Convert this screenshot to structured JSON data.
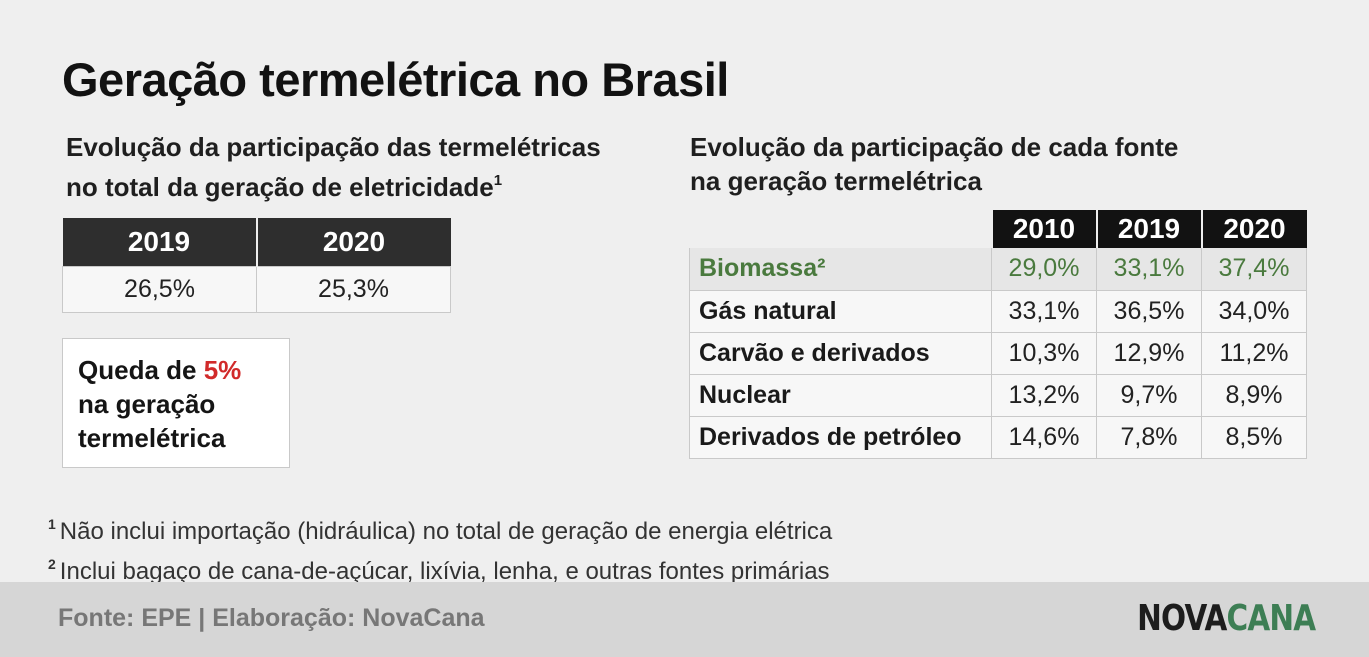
{
  "title": "Geração termelétrica no Brasil",
  "left_section": {
    "subtitle_line1": "Evolução da participação das termelétricas",
    "subtitle_line2": "no total da geração de eletricidade",
    "subtitle_mark": "1",
    "columns": [
      "2019",
      "2020"
    ],
    "values": [
      "26,5%",
      "25,3%"
    ],
    "callout": {
      "prefix": "Queda de ",
      "highlight": "5%",
      "line2": "na geração",
      "line3": "termelétrica",
      "highlight_color": "#d12a2a"
    }
  },
  "right_section": {
    "subtitle_line1": "Evolução da participação de cada fonte",
    "subtitle_line2": "na geração termelétrica",
    "columns": [
      "2010",
      "2019",
      "2020"
    ],
    "rows": [
      {
        "label": "Biomassa",
        "mark": "²",
        "values": [
          "29,0%",
          "33,1%",
          "37,4%"
        ]
      },
      {
        "label": "Gás natural",
        "values": [
          "33,1%",
          "36,5%",
          "34,0%"
        ]
      },
      {
        "label": "Carvão e derivados",
        "values": [
          "10,3%",
          "12,9%",
          "11,2%"
        ]
      },
      {
        "label": "Nuclear",
        "values": [
          "13,2%",
          "9,7%",
          "8,9%"
        ]
      },
      {
        "label": "Derivados de petróleo",
        "values": [
          "14,6%",
          "7,8%",
          "8,5%"
        ]
      }
    ],
    "highlight_color": "#4a7a3e"
  },
  "notes": [
    {
      "mark": "1",
      "text": "Não inclui importação (hidráulica) no total de geração de energia elétrica"
    },
    {
      "mark": "2",
      "text": "Inclui bagaço de cana-de-açúcar, lixívia, lenha, e outras fontes primárias"
    }
  ],
  "footer": {
    "source": "Fonte: EPE | Elaboração: NovaCana",
    "logo_part1": "NOVA",
    "logo_part2": "CANA",
    "logo_color": "#3d7e54"
  }
}
